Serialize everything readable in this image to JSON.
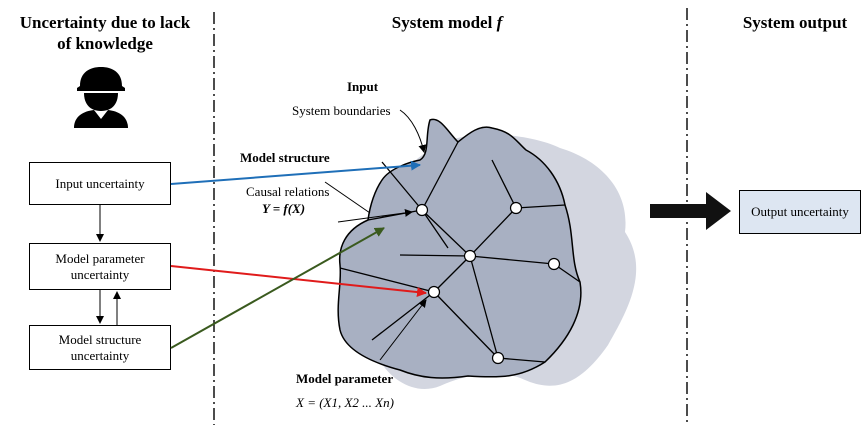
{
  "headings": {
    "left_line1": "Uncertainty due to lack",
    "left_line2": "of knowledge",
    "middle": "System model",
    "middle_symbol": "f",
    "right": "System output"
  },
  "boxes": {
    "input_uncertainty": "Input uncertainty",
    "model_parameter_line1": "Model parameter",
    "model_parameter_line2": "uncertainty",
    "model_structure_line1": "Model structure",
    "model_structure_line2": "uncertainty",
    "output_uncertainty": "Output uncertainty"
  },
  "labels": {
    "input": "Input",
    "system_boundaries": "System boundaries",
    "model_structure": "Model structure",
    "causal_relations": "Causal relations",
    "causal_equation": "Y = f(X)",
    "model_parameter": "Model parameter",
    "parameter_vector": "X = (X1, X2 ... Xn)"
  },
  "icons": {
    "person": "worker-helmet-icon",
    "output_arrow": "big-right-arrow-icon"
  },
  "colors": {
    "blue_arrow": "#1f6fb8",
    "red_arrow": "#e01b1b",
    "green_arrow": "#3a5a1e",
    "shape_fill": "#a8b0c2",
    "shape_shadow": "#d3d6e0",
    "output_box_fill": "#dde6f2"
  }
}
